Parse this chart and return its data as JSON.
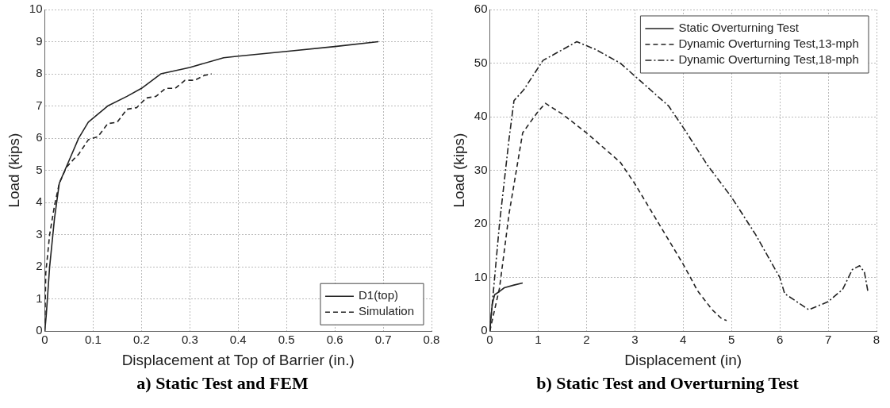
{
  "chart_data": [
    {
      "type": "line",
      "title": "a)  Static Test and FEM",
      "xlabel": "Displacement at Top of Barrier (in.)",
      "ylabel": "Load (kips)",
      "xlim": [
        0,
        0.8
      ],
      "xticks": [
        0,
        0.1,
        0.2,
        0.3,
        0.4,
        0.5,
        0.6,
        0.7,
        0.8
      ],
      "ylim": [
        0,
        10
      ],
      "yticks": [
        0,
        1,
        2,
        3,
        4,
        5,
        6,
        7,
        8,
        9,
        10
      ],
      "grid": true,
      "legend": "bottom right",
      "marker": "none",
      "series": [
        {
          "name": "D1(top)",
          "color": "#222222",
          "line_style": "solid",
          "x": [
            0,
            0.003,
            0.01,
            0.02,
            0.03,
            0.05,
            0.07,
            0.09,
            0.13,
            0.17,
            0.2,
            0.24,
            0.3,
            0.37,
            0.4,
            0.5,
            0.6,
            0.69
          ],
          "values": [
            0,
            0.5,
            2,
            3.5,
            4.6,
            5.3,
            6,
            6.5,
            7,
            7.3,
            7.55,
            8,
            8.2,
            8.5,
            8.55,
            8.7,
            8.85,
            9
          ]
        },
        {
          "name": "Simulation",
          "color": "#222222",
          "line_style": "dashed",
          "x": [
            0,
            0.002,
            0.01,
            0.02,
            0.03,
            0.045,
            0.06,
            0.07,
            0.09,
            0.1,
            0.11,
            0.13,
            0.15,
            0.17,
            0.19,
            0.2,
            0.21,
            0.23,
            0.25,
            0.27,
            0.29,
            0.31,
            0.33,
            0.345
          ],
          "values": [
            0,
            1.8,
            3,
            3.9,
            4.6,
            5.1,
            5.35,
            5.5,
            5.95,
            6,
            6.05,
            6.45,
            6.5,
            6.9,
            6.95,
            7.1,
            7.25,
            7.3,
            7.55,
            7.55,
            7.8,
            7.8,
            7.95,
            8
          ]
        }
      ]
    },
    {
      "type": "line",
      "title": "b) Static Test and Overturning Test",
      "xlabel": "Displacement (in)",
      "ylabel": "Load (kips)",
      "xlim": [
        0,
        8
      ],
      "xticks": [
        0,
        1,
        2,
        3,
        4,
        5,
        6,
        7,
        8
      ],
      "ylim": [
        0,
        60
      ],
      "yticks": [
        0,
        10,
        20,
        30,
        40,
        50,
        60
      ],
      "grid": true,
      "legend": "top right",
      "marker": "none",
      "series": [
        {
          "name": "Static Overturning Test",
          "color": "#222222",
          "line_style": "solid",
          "x": [
            0,
            0.05,
            0.1,
            0.2,
            0.3,
            0.5,
            0.68
          ],
          "values": [
            0,
            5,
            6.8,
            7.4,
            8.1,
            8.6,
            9
          ]
        },
        {
          "name": "Dynamic Overturning Test,13-mph",
          "color": "#222222",
          "line_style": "dashed",
          "x": [
            0,
            0.2,
            0.4,
            0.68,
            1,
            1.15,
            1.5,
            2,
            2.7,
            3,
            3.5,
            4,
            4.3,
            4.6,
            4.8,
            4.9
          ],
          "values": [
            0,
            8,
            22,
            37,
            41,
            42.5,
            40.5,
            37,
            31.5,
            27.5,
            20,
            12.5,
            7.5,
            4,
            2.3,
            2
          ]
        },
        {
          "name": "Dynamic Overturning Test,18-mph",
          "color": "#222222",
          "line_style": "dashdot",
          "x": [
            0,
            0.2,
            0.4,
            0.5,
            0.7,
            1.1,
            1.5,
            1.8,
            2.2,
            2.7,
            3.2,
            3.7,
            4,
            4.5,
            5,
            5.5,
            6,
            6.1,
            6.6,
            7,
            7.3,
            7.5,
            7.65,
            7.75,
            7.82
          ],
          "values": [
            0,
            20,
            36,
            43,
            45,
            50.5,
            52.5,
            54,
            52.5,
            50,
            46,
            42,
            38,
            31,
            25,
            18,
            10,
            7,
            4,
            5.5,
            7.8,
            11.5,
            12.2,
            11,
            7.5
          ]
        }
      ]
    }
  ]
}
